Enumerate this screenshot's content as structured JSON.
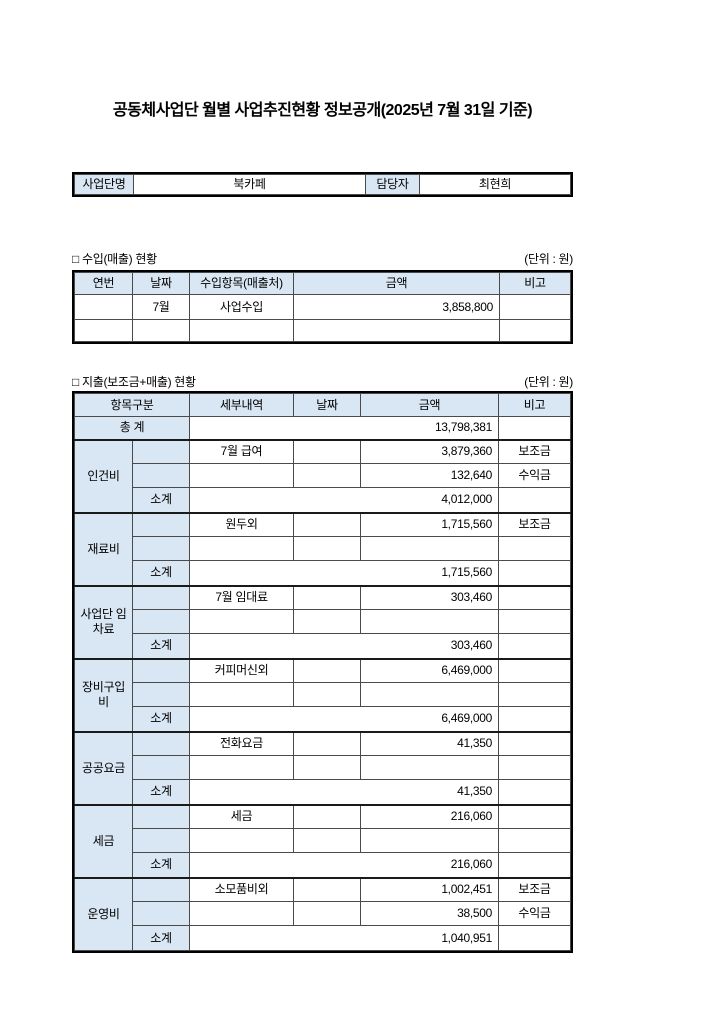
{
  "page": {
    "title": "공동체사업단 월별 사업추진현황 정보공개(2025년 7월 31일 기준)"
  },
  "colors": {
    "header_fill": "#d9e6f3",
    "border": "#000000"
  },
  "info": {
    "team_label": "사업단명",
    "team_value": "북카페",
    "manager_label": "담당자",
    "manager_value": "최현희"
  },
  "income": {
    "section_label": "□ 수입(매출) 현황",
    "unit_label": "(단위 : 원)",
    "headers": [
      "연번",
      "날짜",
      "수입항목(매출처)",
      "금액",
      "비고"
    ],
    "rows": [
      {
        "no": "",
        "date": "7월",
        "item": "사업수입",
        "amount": "3,858,800",
        "note": ""
      },
      {
        "no": "",
        "date": "",
        "item": "",
        "amount": "",
        "note": ""
      }
    ]
  },
  "expense": {
    "section_label": "□ 지출(보조금+매출) 현황",
    "unit_label": "(단위 : 원)",
    "headers": [
      "항목구분",
      "세부내역",
      "날짜",
      "금액",
      "비고"
    ],
    "total": {
      "label": "총 계",
      "amount": "13,798,381",
      "note": ""
    },
    "subtotal_label": "소계",
    "groups": [
      {
        "name": "인건비",
        "rows": [
          {
            "detail": "7월 급여",
            "date": "",
            "amount": "3,879,360",
            "note": "보조금"
          },
          {
            "detail": "",
            "date": "",
            "amount": "132,640",
            "note": "수익금"
          }
        ],
        "subtotal": "4,012,000",
        "subtotal_note": ""
      },
      {
        "name": "재료비",
        "rows": [
          {
            "detail": "원두외",
            "date": "",
            "amount": "1,715,560",
            "note": "보조금"
          },
          {
            "detail": "",
            "date": "",
            "amount": "",
            "note": ""
          }
        ],
        "subtotal": "1,715,560",
        "subtotal_note": ""
      },
      {
        "name": "사업단 임차료",
        "rows": [
          {
            "detail": "7월 임대료",
            "date": "",
            "amount": "303,460",
            "note": ""
          },
          {
            "detail": "",
            "date": "",
            "amount": "",
            "note": ""
          }
        ],
        "subtotal": "303,460",
        "subtotal_note": ""
      },
      {
        "name": "장비구입비",
        "rows": [
          {
            "detail": "커피머신외",
            "date": "",
            "amount": "6,469,000",
            "note": ""
          },
          {
            "detail": "",
            "date": "",
            "amount": "",
            "note": ""
          }
        ],
        "subtotal": "6,469,000",
        "subtotal_note": ""
      },
      {
        "name": "공공요금",
        "rows": [
          {
            "detail": "전화요금",
            "date": "",
            "amount": "41,350",
            "note": ""
          },
          {
            "detail": "",
            "date": "",
            "amount": "",
            "note": ""
          }
        ],
        "subtotal": "41,350",
        "subtotal_note": ""
      },
      {
        "name": "세금",
        "rows": [
          {
            "detail": "세금",
            "date": "",
            "amount": "216,060",
            "note": ""
          },
          {
            "detail": "",
            "date": "",
            "amount": "",
            "note": ""
          }
        ],
        "subtotal": "216,060",
        "subtotal_note": ""
      },
      {
        "name": "운영비",
        "rows": [
          {
            "detail": "소모품비외",
            "date": "",
            "amount": "1,002,451",
            "note": "보조금"
          },
          {
            "detail": "",
            "date": "",
            "amount": "38,500",
            "note": "수익금"
          }
        ],
        "subtotal": "1,040,951",
        "subtotal_note": ""
      }
    ]
  }
}
